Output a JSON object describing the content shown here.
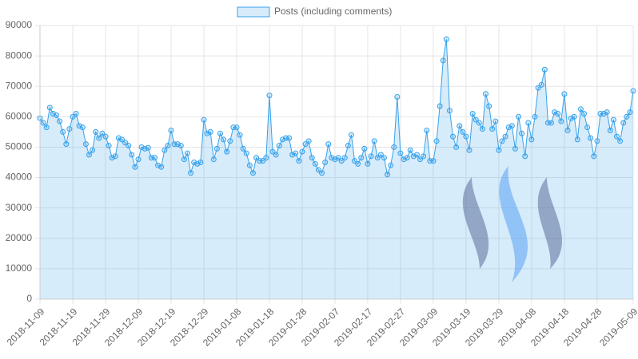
{
  "chart_data": {
    "type": "line",
    "categories": [
      "2018-11-09",
      null,
      null,
      null,
      null,
      null,
      null,
      null,
      null,
      null,
      "2018-11-19",
      null,
      null,
      null,
      null,
      null,
      null,
      null,
      null,
      null,
      "2018-11-29",
      null,
      null,
      null,
      null,
      null,
      null,
      null,
      null,
      null,
      "2018-12-09",
      null,
      null,
      null,
      null,
      null,
      null,
      null,
      null,
      null,
      "2018-12-19",
      null,
      null,
      null,
      null,
      null,
      null,
      null,
      null,
      null,
      "2018-12-29",
      null,
      null,
      null,
      null,
      null,
      null,
      null,
      null,
      null,
      "2019-01-08",
      null,
      null,
      null,
      null,
      null,
      null,
      null,
      null,
      null,
      "2019-01-18",
      null,
      null,
      null,
      null,
      null,
      null,
      null,
      null,
      null,
      "2019-01-28",
      null,
      null,
      null,
      null,
      null,
      null,
      null,
      null,
      null,
      "2019-02-07",
      null,
      null,
      null,
      null,
      null,
      null,
      null,
      null,
      null,
      "2019-02-17",
      null,
      null,
      null,
      null,
      null,
      null,
      null,
      null,
      null,
      "2019-02-27",
      null,
      null,
      null,
      null,
      null,
      null,
      null,
      null,
      null,
      "2019-03-09",
      null,
      null,
      null,
      null,
      null,
      null,
      null,
      null,
      null,
      "2019-03-19",
      null,
      null,
      null,
      null,
      null,
      null,
      null,
      null,
      null,
      "2019-03-29",
      null,
      null,
      null,
      null,
      null,
      null,
      null,
      null,
      null,
      "2019-04-08",
      null,
      null,
      null,
      null,
      null,
      null,
      null,
      null,
      null,
      "2019-04-18",
      null,
      null,
      null,
      null,
      null,
      null,
      null,
      null,
      null,
      "2019-04-28",
      null,
      null,
      null,
      null,
      null,
      null,
      null,
      null,
      null,
      null,
      "2019-05-09"
    ],
    "series": [
      {
        "name": "Posts (including comments)",
        "color": "#36a2eb",
        "fill": "rgba(54,162,235,0.2)",
        "values": [
          59500,
          58000,
          56500,
          63000,
          61000,
          60500,
          58500,
          55000,
          51000,
          56000,
          60000,
          61000,
          57000,
          56500,
          51000,
          47500,
          49000,
          55000,
          53000,
          54500,
          53500,
          50500,
          46500,
          47000,
          53000,
          52500,
          51500,
          50500,
          47500,
          43500,
          46000,
          50000,
          49500,
          49800,
          46500,
          46500,
          44000,
          43500,
          49000,
          50500,
          55500,
          51000,
          51000,
          50500,
          46000,
          48000,
          41500,
          45000,
          44500,
          45000,
          59000,
          54500,
          55000,
          46000,
          49500,
          54500,
          52500,
          48500,
          52000,
          56500,
          56500,
          54000,
          49500,
          48000,
          44000,
          41500,
          46500,
          45500,
          45500,
          46500,
          67000,
          48500,
          47500,
          50500,
          52500,
          53000,
          53000,
          47500,
          48000,
          45500,
          48500,
          51000,
          52000,
          46500,
          44500,
          42500,
          41500,
          45000,
          51000,
          46500,
          46000,
          46500,
          45500,
          46500,
          50500,
          54000,
          45500,
          44500,
          46500,
          49500,
          44500,
          47000,
          52000,
          46500,
          47500,
          46500,
          41000,
          44000,
          50000,
          66500,
          48000,
          46000,
          46500,
          49000,
          47000,
          47500,
          46000,
          47000,
          55500,
          45500,
          45500,
          52000,
          63500,
          78500,
          85500,
          62000,
          53500,
          50000,
          57000,
          55000,
          53500,
          49000,
          61000,
          59000,
          58000,
          56000,
          67500,
          63500,
          56000,
          58500,
          49000,
          52000,
          53500,
          56500,
          57000,
          49500,
          60000,
          54500,
          47000,
          58000,
          52500,
          60000,
          69500,
          70500,
          75500,
          58000,
          58000,
          61500,
          61000,
          58500,
          67500,
          55500,
          59500,
          60000,
          52500,
          62500,
          61000,
          56500,
          53000,
          47000,
          52000,
          61000,
          61000,
          61500,
          55500,
          59000,
          53500,
          52000,
          58000,
          60000,
          61500,
          68500
        ]
      }
    ],
    "ylim": [
      0,
      90000
    ],
    "yticks": [
      0,
      10000,
      20000,
      30000,
      40000,
      50000,
      60000,
      70000,
      80000,
      90000
    ],
    "grid": true,
    "legend": "top"
  }
}
